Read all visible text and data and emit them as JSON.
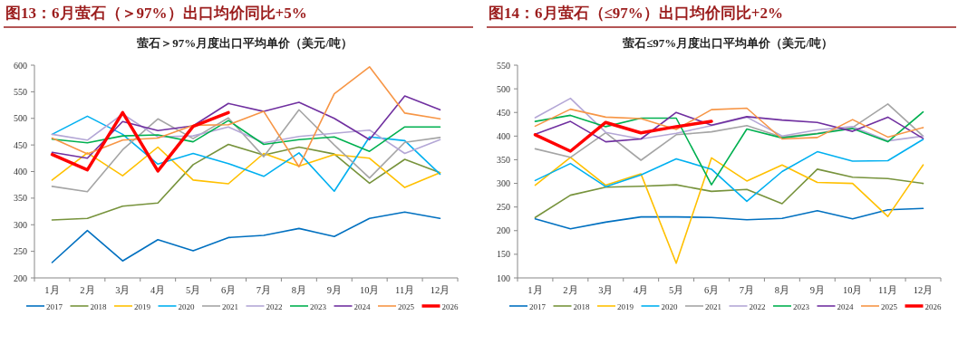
{
  "chart_data": [
    {
      "type": "line",
      "title": "图13：6月萤石（＞97%）出口均价同比+5%",
      "subtitle": "萤石＞97%月度出口平均单价（美元/吨）",
      "categories": [
        "1月",
        "2月",
        "3月",
        "4月",
        "5月",
        "6月",
        "7月",
        "8月",
        "9月",
        "10月",
        "11月",
        "12月"
      ],
      "ylim": [
        200,
        600
      ],
      "yticks": [
        200,
        250,
        300,
        350,
        400,
        450,
        500,
        550,
        600
      ],
      "grid": false,
      "legend": "bottom",
      "marker": "none",
      "line_style": "solid",
      "series": [
        {
          "name": "2017",
          "color": "#0070c0",
          "values": [
            229,
            289,
            232,
            272,
            251,
            276,
            280,
            293,
            278,
            312,
            324,
            312
          ]
        },
        {
          "name": "2018",
          "color": "#77933c",
          "values": [
            309,
            312,
            335,
            341,
            413,
            451,
            431,
            446,
            433,
            378,
            423,
            398
          ]
        },
        {
          "name": "2019",
          "color": "#ffc000",
          "values": [
            384,
            435,
            392,
            446,
            384,
            377,
            434,
            410,
            432,
            425,
            370,
            398
          ]
        },
        {
          "name": "2020",
          "color": "#00b0f0",
          "values": [
            470,
            504,
            470,
            414,
            434,
            415,
            391,
            435,
            363,
            465,
            458,
            395
          ]
        },
        {
          "name": "2021",
          "color": "#a5a5a5",
          "values": [
            372,
            362,
            441,
            499,
            462,
            501,
            428,
            516,
            450,
            388,
            455,
            464
          ]
        },
        {
          "name": "2022",
          "color": "#b4a7d6",
          "values": [
            470,
            459,
            508,
            465,
            467,
            484,
            454,
            466,
            472,
            478,
            434,
            460
          ]
        },
        {
          "name": "2023",
          "color": "#00b050",
          "values": [
            461,
            454,
            467,
            469,
            456,
            496,
            451,
            460,
            465,
            438,
            484,
            484
          ]
        },
        {
          "name": "2024",
          "color": "#7030a0",
          "values": [
            436,
            425,
            494,
            477,
            486,
            528,
            513,
            530,
            500,
            460,
            542,
            516
          ]
        },
        {
          "name": "2025",
          "color": "#f79646",
          "values": [
            463,
            433,
            459,
            463,
            487,
            488,
            513,
            409,
            546,
            597,
            510,
            499
          ]
        },
        {
          "name": "2026",
          "color": "#ff0000",
          "values": [
            432,
            403,
            511,
            401,
            485,
            511,
            null,
            null,
            null,
            null,
            null,
            null
          ]
        }
      ]
    },
    {
      "type": "line",
      "title": "图14：6月萤石（≤97%）出口均价同比+2%",
      "subtitle": "萤石≤97%月度出口平均单价（美元/吨）",
      "categories": [
        "1月",
        "2月",
        "3月",
        "4月",
        "5月",
        "6月",
        "7月",
        "8月",
        "9月",
        "10月",
        "11月",
        "12月"
      ],
      "ylim": [
        100,
        550
      ],
      "yticks": [
        100,
        150,
        200,
        250,
        300,
        350,
        400,
        450,
        500,
        550
      ],
      "grid": false,
      "legend": "bottom",
      "marker": "none",
      "line_style": "solid",
      "series": [
        {
          "name": "2017",
          "color": "#0070c0",
          "values": [
            225,
            204,
            218,
            229,
            229,
            228,
            223,
            226,
            242,
            225,
            244,
            247
          ]
        },
        {
          "name": "2018",
          "color": "#77933c",
          "values": [
            228,
            275,
            292,
            294,
            297,
            283,
            287,
            257,
            330,
            313,
            310,
            300
          ]
        },
        {
          "name": "2019",
          "color": "#ffc000",
          "values": [
            296,
            355,
            296,
            320,
            131,
            354,
            305,
            339,
            302,
            300,
            230,
            339
          ]
        },
        {
          "name": "2020",
          "color": "#00b0f0",
          "values": [
            306,
            342,
            293,
            318,
            352,
            330,
            262,
            325,
            367,
            347,
            348,
            393
          ]
        },
        {
          "name": "2021",
          "color": "#a5a5a5",
          "values": [
            373,
            355,
            407,
            349,
            403,
            409,
            422,
            398,
            406,
            418,
            468,
            400
          ]
        },
        {
          "name": "2022",
          "color": "#b4a7d6",
          "values": [
            439,
            480,
            408,
            394,
            406,
            422,
            440,
            400,
            413,
            420,
            390,
            400
          ]
        },
        {
          "name": "2023",
          "color": "#00b050",
          "values": [
            431,
            444,
            420,
            438,
            438,
            297,
            415,
            396,
            405,
            416,
            388,
            451
          ]
        },
        {
          "name": "2024",
          "color": "#7030a0",
          "values": [
            404,
            431,
            388,
            394,
            450,
            423,
            441,
            434,
            429,
            410,
            440,
            395
          ]
        },
        {
          "name": "2025",
          "color": "#f79646",
          "values": [
            421,
            457,
            440,
            437,
            414,
            456,
            459,
            394,
            397,
            435,
            398,
            418
          ]
        },
        {
          "name": "2026",
          "color": "#ff0000",
          "values": [
            403,
            368,
            429,
            407,
            420,
            431,
            null,
            null,
            null,
            null,
            null,
            null
          ]
        }
      ]
    }
  ]
}
